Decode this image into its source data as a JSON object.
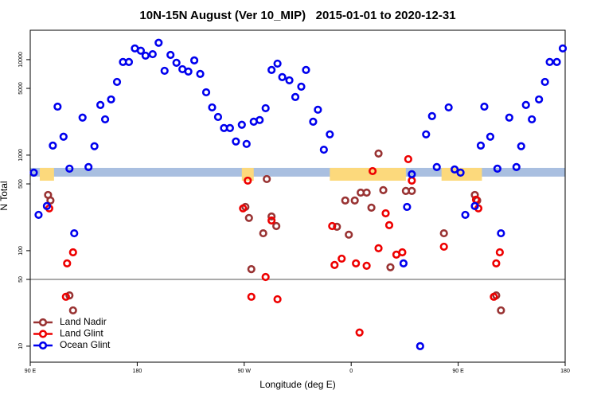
{
  "chart_data": {
    "type": "scatter",
    "title": "10N-15N August (Ver 10_MIP)   2015-01-01 to 2020-12-31",
    "x_label": "Longitude (deg E)",
    "y_label": "N Total",
    "xlim": [
      90,
      540
    ],
    "xticks": [
      {
        "value": 90,
        "label": "90 E"
      },
      180,
      {
        "value": 270,
        "label": "90 W"
      },
      {
        "value": 360,
        "label": "0"
      },
      {
        "value": 450,
        "label": "90 E"
      },
      {
        "value": 540,
        "label": "180"
      }
    ],
    "ylim": [
      6.8,
      20300
    ],
    "ylog": true,
    "yticks": [
      10,
      50,
      100,
      500,
      1000,
      5000,
      10000
    ],
    "hline": 50,
    "band": {
      "range": [
        596,
        735
      ],
      "color": "#a9bfe0"
    },
    "spans": {
      "color": "#fcd97c",
      "low": 540,
      "x": [
        [
          98,
          110
        ],
        [
          268,
          278
        ],
        [
          342,
          406
        ],
        [
          436,
          470
        ]
      ]
    },
    "legend": "lower left",
    "series": [
      {
        "name": "Land Nadir",
        "color": "#993333",
        "x": [
          105,
          107,
          123,
          126,
          271,
          274,
          276,
          286,
          289,
          293,
          297,
          348,
          355,
          358,
          363,
          368,
          373,
          377,
          383,
          387,
          393,
          406,
          411,
          438,
          464,
          466,
          482,
          486
        ],
        "values": [
          383,
          335,
          34,
          23.7,
          287,
          220,
          64,
          152,
          562,
          228,
          181,
          178,
          335,
          147,
          335,
          405,
          405,
          282,
          1040,
          430,
          67,
          422,
          422,
          152,
          383,
          335,
          34,
          23.7
        ]
      },
      {
        "name": "Land Glint",
        "color": "#ee0000",
        "x": [
          106,
          121,
          120,
          126,
          269,
          273,
          276,
          288,
          293,
          298,
          344,
          346,
          352,
          364,
          367,
          373,
          378,
          383,
          389,
          392,
          398,
          403,
          408,
          411,
          438,
          465,
          467,
          482,
          480,
          485
        ],
        "values": [
          277,
          73.6,
          32.9,
          96,
          277,
          541,
          32.9,
          53,
          207,
          31,
          181,
          70.8,
          82.5,
          73.6,
          13.9,
          69.5,
          681,
          106,
          246,
          185,
          90.9,
          96,
          908,
          541,
          110,
          342,
          277,
          73.6,
          32.9,
          96
        ]
      },
      {
        "name": "Ocean Glint",
        "color": "#0000ee",
        "x": [
          93,
          97,
          104,
          109,
          113,
          118,
          123,
          127,
          134,
          139,
          144,
          149,
          153,
          158,
          163,
          168,
          173,
          178,
          183,
          187,
          193,
          198,
          203,
          208,
          213,
          218,
          223,
          228,
          233,
          238,
          243,
          248,
          253,
          258,
          263,
          268,
          272,
          278,
          283,
          288,
          293,
          298,
          302,
          308,
          313,
          318,
          322,
          328,
          332,
          337,
          342,
          404,
          407,
          411,
          418,
          423,
          428,
          432,
          442,
          447,
          452,
          456,
          464,
          469,
          472,
          477,
          483,
          486,
          493,
          499,
          503,
          507,
          512,
          518,
          523,
          527,
          533,
          538
        ],
        "values": [
          656,
          237,
          293,
          1260,
          3220,
          1560,
          722,
          152,
          2470,
          750,
          1240,
          3350,
          2370,
          3830,
          5840,
          9440,
          9440,
          13100,
          12400,
          11000,
          11400,
          15000,
          7640,
          11200,
          9260,
          7940,
          7500,
          9810,
          7080,
          4550,
          3160,
          2510,
          1920,
          1920,
          1390,
          2080,
          1310,
          2240,
          2330,
          3100,
          7800,
          9080,
          6560,
          6070,
          4060,
          5210,
          7800,
          2240,
          2990,
          1140,
          1650,
          73.6,
          287,
          631,
          10,
          1650,
          2560,
          750,
          3160,
          708,
          656,
          237,
          293,
          1260,
          3220,
          1560,
          722,
          152,
          2470,
          750,
          1240,
          3350,
          2370,
          3830,
          5840,
          9440,
          9440,
          13100
        ]
      }
    ]
  }
}
